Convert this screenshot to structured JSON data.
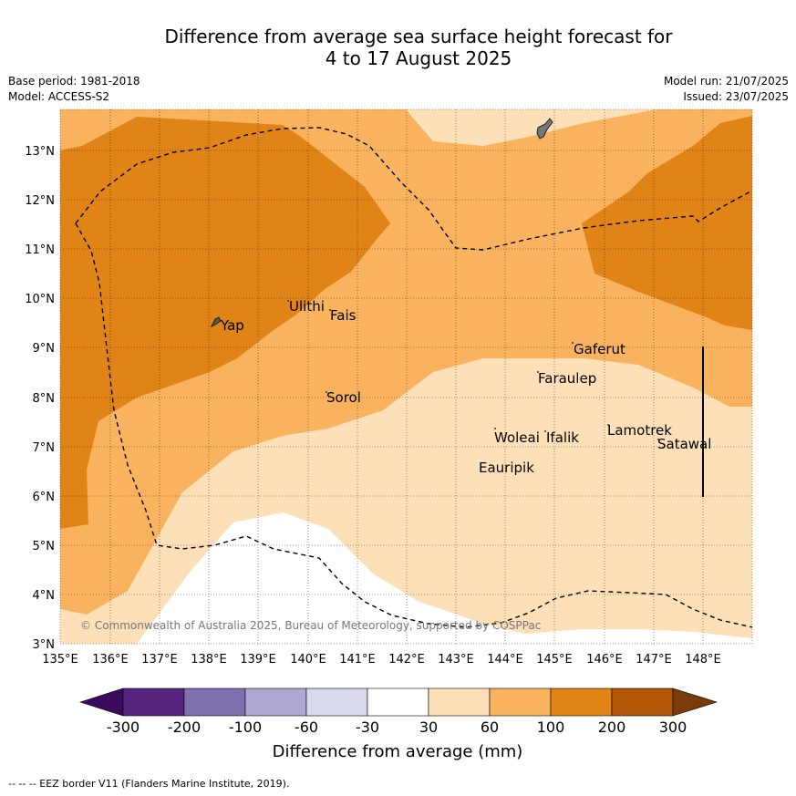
{
  "title_line1": "Difference from average sea surface height forecast for",
  "title_line2": "4 to 17 August 2025",
  "base_period": "Base period: 1981-2018",
  "model": "Model: ACCESS-S2",
  "model_run": "Model run: 21/07/2025",
  "issued": "Issued: 23/07/2025",
  "copyright": "© Commonwealth of Australia 2025, Bureau of Meteorology, supported by COSPPac",
  "colorbar_label": "Difference from average (mm)",
  "colorbar_ticks": [
    "-300",
    "-200",
    "-100",
    "-60",
    "-30",
    "30",
    "60",
    "100",
    "200",
    "300"
  ],
  "colorbar_colors": [
    "#3a0a5e",
    "#54247f",
    "#7f70ad",
    "#b0a8d2",
    "#d9d9ec",
    "#ffffff",
    "#fde0b8",
    "#f9b35e",
    "#e08418",
    "#b25606",
    "#7b3a0a"
  ],
  "footer": "--  --  -- EEZ border V11 (Flanders Marine Institute, 2019).",
  "x_tick_labels": [
    "135°E",
    "136°E",
    "137°E",
    "138°E",
    "139°E",
    "140°E",
    "141°E",
    "142°E",
    "143°E",
    "144°E",
    "145°E",
    "146°E",
    "147°E",
    "148°E"
  ],
  "y_tick_labels": [
    "3°N",
    "4°N",
    "5°N",
    "6°N",
    "7°N",
    "8°N",
    "9°N",
    "10°N",
    "11°N",
    "12°N",
    "13°N"
  ],
  "places": [
    "Ulithi",
    "Fais",
    "Yap",
    "Gaferut",
    "Faraulep",
    "Sorol",
    "Woleai",
    "Ifalik",
    "Lamotrek",
    "Satawal",
    "Eauripik"
  ]
}
